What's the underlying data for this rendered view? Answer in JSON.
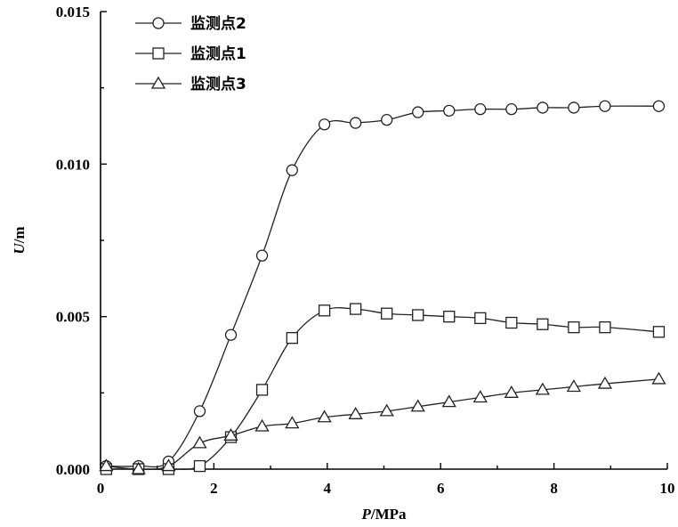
{
  "chart_data": {
    "type": "line",
    "xlabel": {
      "var": "P",
      "unit": "/MPa"
    },
    "ylabel": {
      "var": "U",
      "unit": "/m"
    },
    "xlim": [
      0,
      10
    ],
    "ylim": [
      0,
      0.015
    ],
    "xticks": [
      "0",
      "2",
      "4",
      "6",
      "8",
      "10"
    ],
    "yticks": [
      "0.000",
      "0.005",
      "0.010",
      "0.015"
    ],
    "grid": false,
    "legend_position": "top-left",
    "series": [
      {
        "name": "监测点2",
        "marker": "circle",
        "x": [
          0.1,
          0.67,
          1.2,
          1.75,
          2.3,
          2.85,
          3.38,
          3.95,
          4.5,
          5.05,
          5.6,
          6.15,
          6.7,
          7.25,
          7.8,
          8.35,
          8.9,
          9.85
        ],
        "y": [
          0.0001,
          0.0001,
          0.00025,
          0.0019,
          0.0044,
          0.007,
          0.0098,
          0.0113,
          0.01135,
          0.01145,
          0.0117,
          0.01175,
          0.0118,
          0.0118,
          0.01185,
          0.01185,
          0.0119,
          0.0119
        ]
      },
      {
        "name": "监测点1",
        "marker": "square",
        "x": [
          0.1,
          0.67,
          1.2,
          1.75,
          2.3,
          2.85,
          3.38,
          3.95,
          4.5,
          5.05,
          5.6,
          6.15,
          6.7,
          7.25,
          7.8,
          8.35,
          8.9,
          9.85
        ],
        "y": [
          0.0,
          0.0,
          0.0,
          0.0001,
          0.00105,
          0.0026,
          0.0043,
          0.0052,
          0.00525,
          0.0051,
          0.00505,
          0.005,
          0.00495,
          0.0048,
          0.00475,
          0.00465,
          0.00465,
          0.0045
        ]
      },
      {
        "name": "监测点3",
        "marker": "triangle",
        "x": [
          0.1,
          0.67,
          1.2,
          1.75,
          2.3,
          2.85,
          3.38,
          3.95,
          4.5,
          5.05,
          5.6,
          6.15,
          6.7,
          7.25,
          7.8,
          8.35,
          8.9,
          9.85
        ],
        "y": [
          0.0001,
          0.0,
          0.0001,
          0.00085,
          0.0011,
          0.0014,
          0.0015,
          0.0017,
          0.0018,
          0.0019,
          0.00205,
          0.0022,
          0.00235,
          0.0025,
          0.0026,
          0.0027,
          0.0028,
          0.00295
        ]
      }
    ]
  }
}
